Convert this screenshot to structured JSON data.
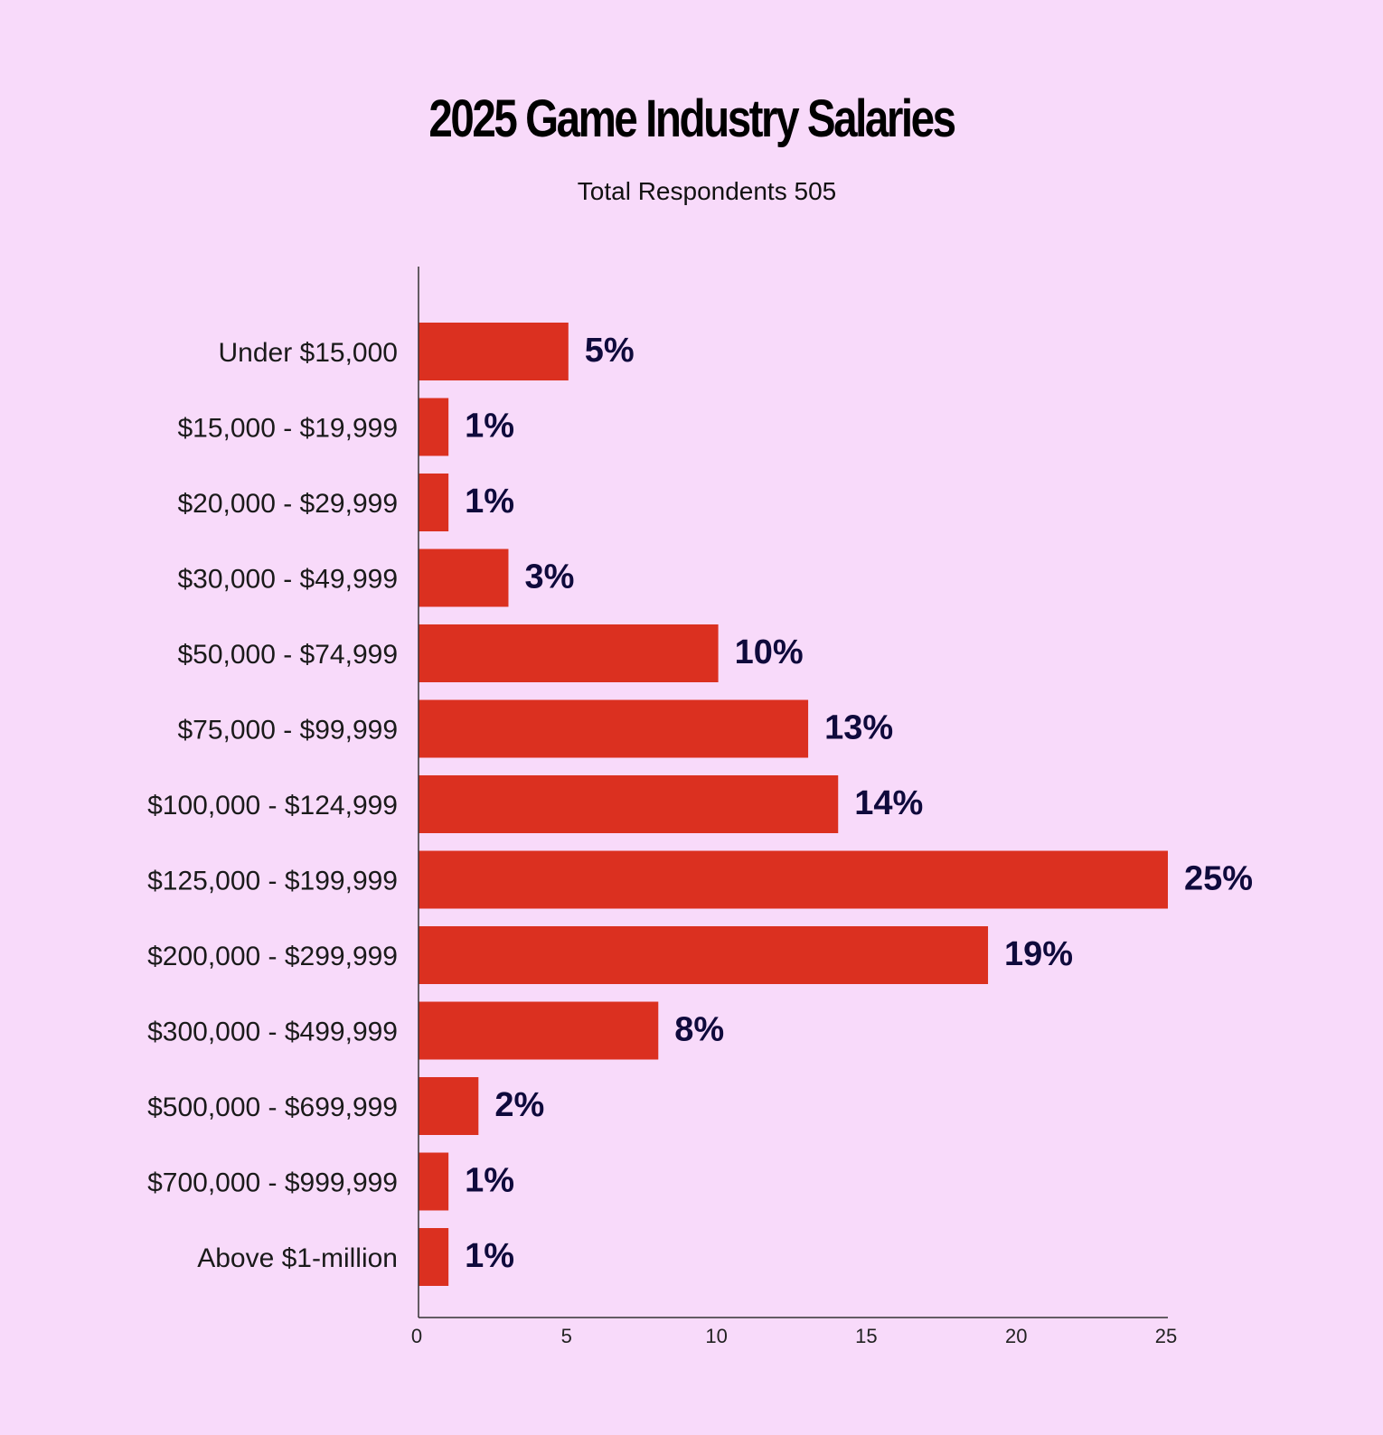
{
  "chart_data": {
    "type": "bar",
    "orientation": "horizontal",
    "title": "2025 Game Industry Salaries",
    "subtitle": "Total Respondents 505",
    "categories": [
      "Under $15,000",
      "$15,000 - $19,999",
      "$20,000 - $29,999",
      "$30,000 - $49,999",
      "$50,000 - $74,999",
      "$75,000 - $99,999",
      "$100,000 - $124,999",
      "$125,000 - $199,999",
      "$200,000 - $299,999",
      "$300,000 - $499,999",
      "$500,000 - $699,999",
      "$700,000 - $999,999",
      "Above $1-million"
    ],
    "values": [
      5,
      1,
      1,
      3,
      10,
      13,
      14,
      25,
      19,
      8,
      2,
      1,
      1
    ],
    "data_labels": [
      "5%",
      "1%",
      "1%",
      "3%",
      "10%",
      "13%",
      "14%",
      "25%",
      "19%",
      "8%",
      "2%",
      "1%",
      "1%"
    ],
    "xlim": [
      0,
      25
    ],
    "xticks": [
      0,
      5,
      10,
      15,
      20,
      25
    ],
    "xlabel": "",
    "ylabel": "",
    "grid": false,
    "colors": {
      "bar": "#db3020",
      "data_label": "#0f0a3c",
      "background": "#f8dafa"
    }
  }
}
